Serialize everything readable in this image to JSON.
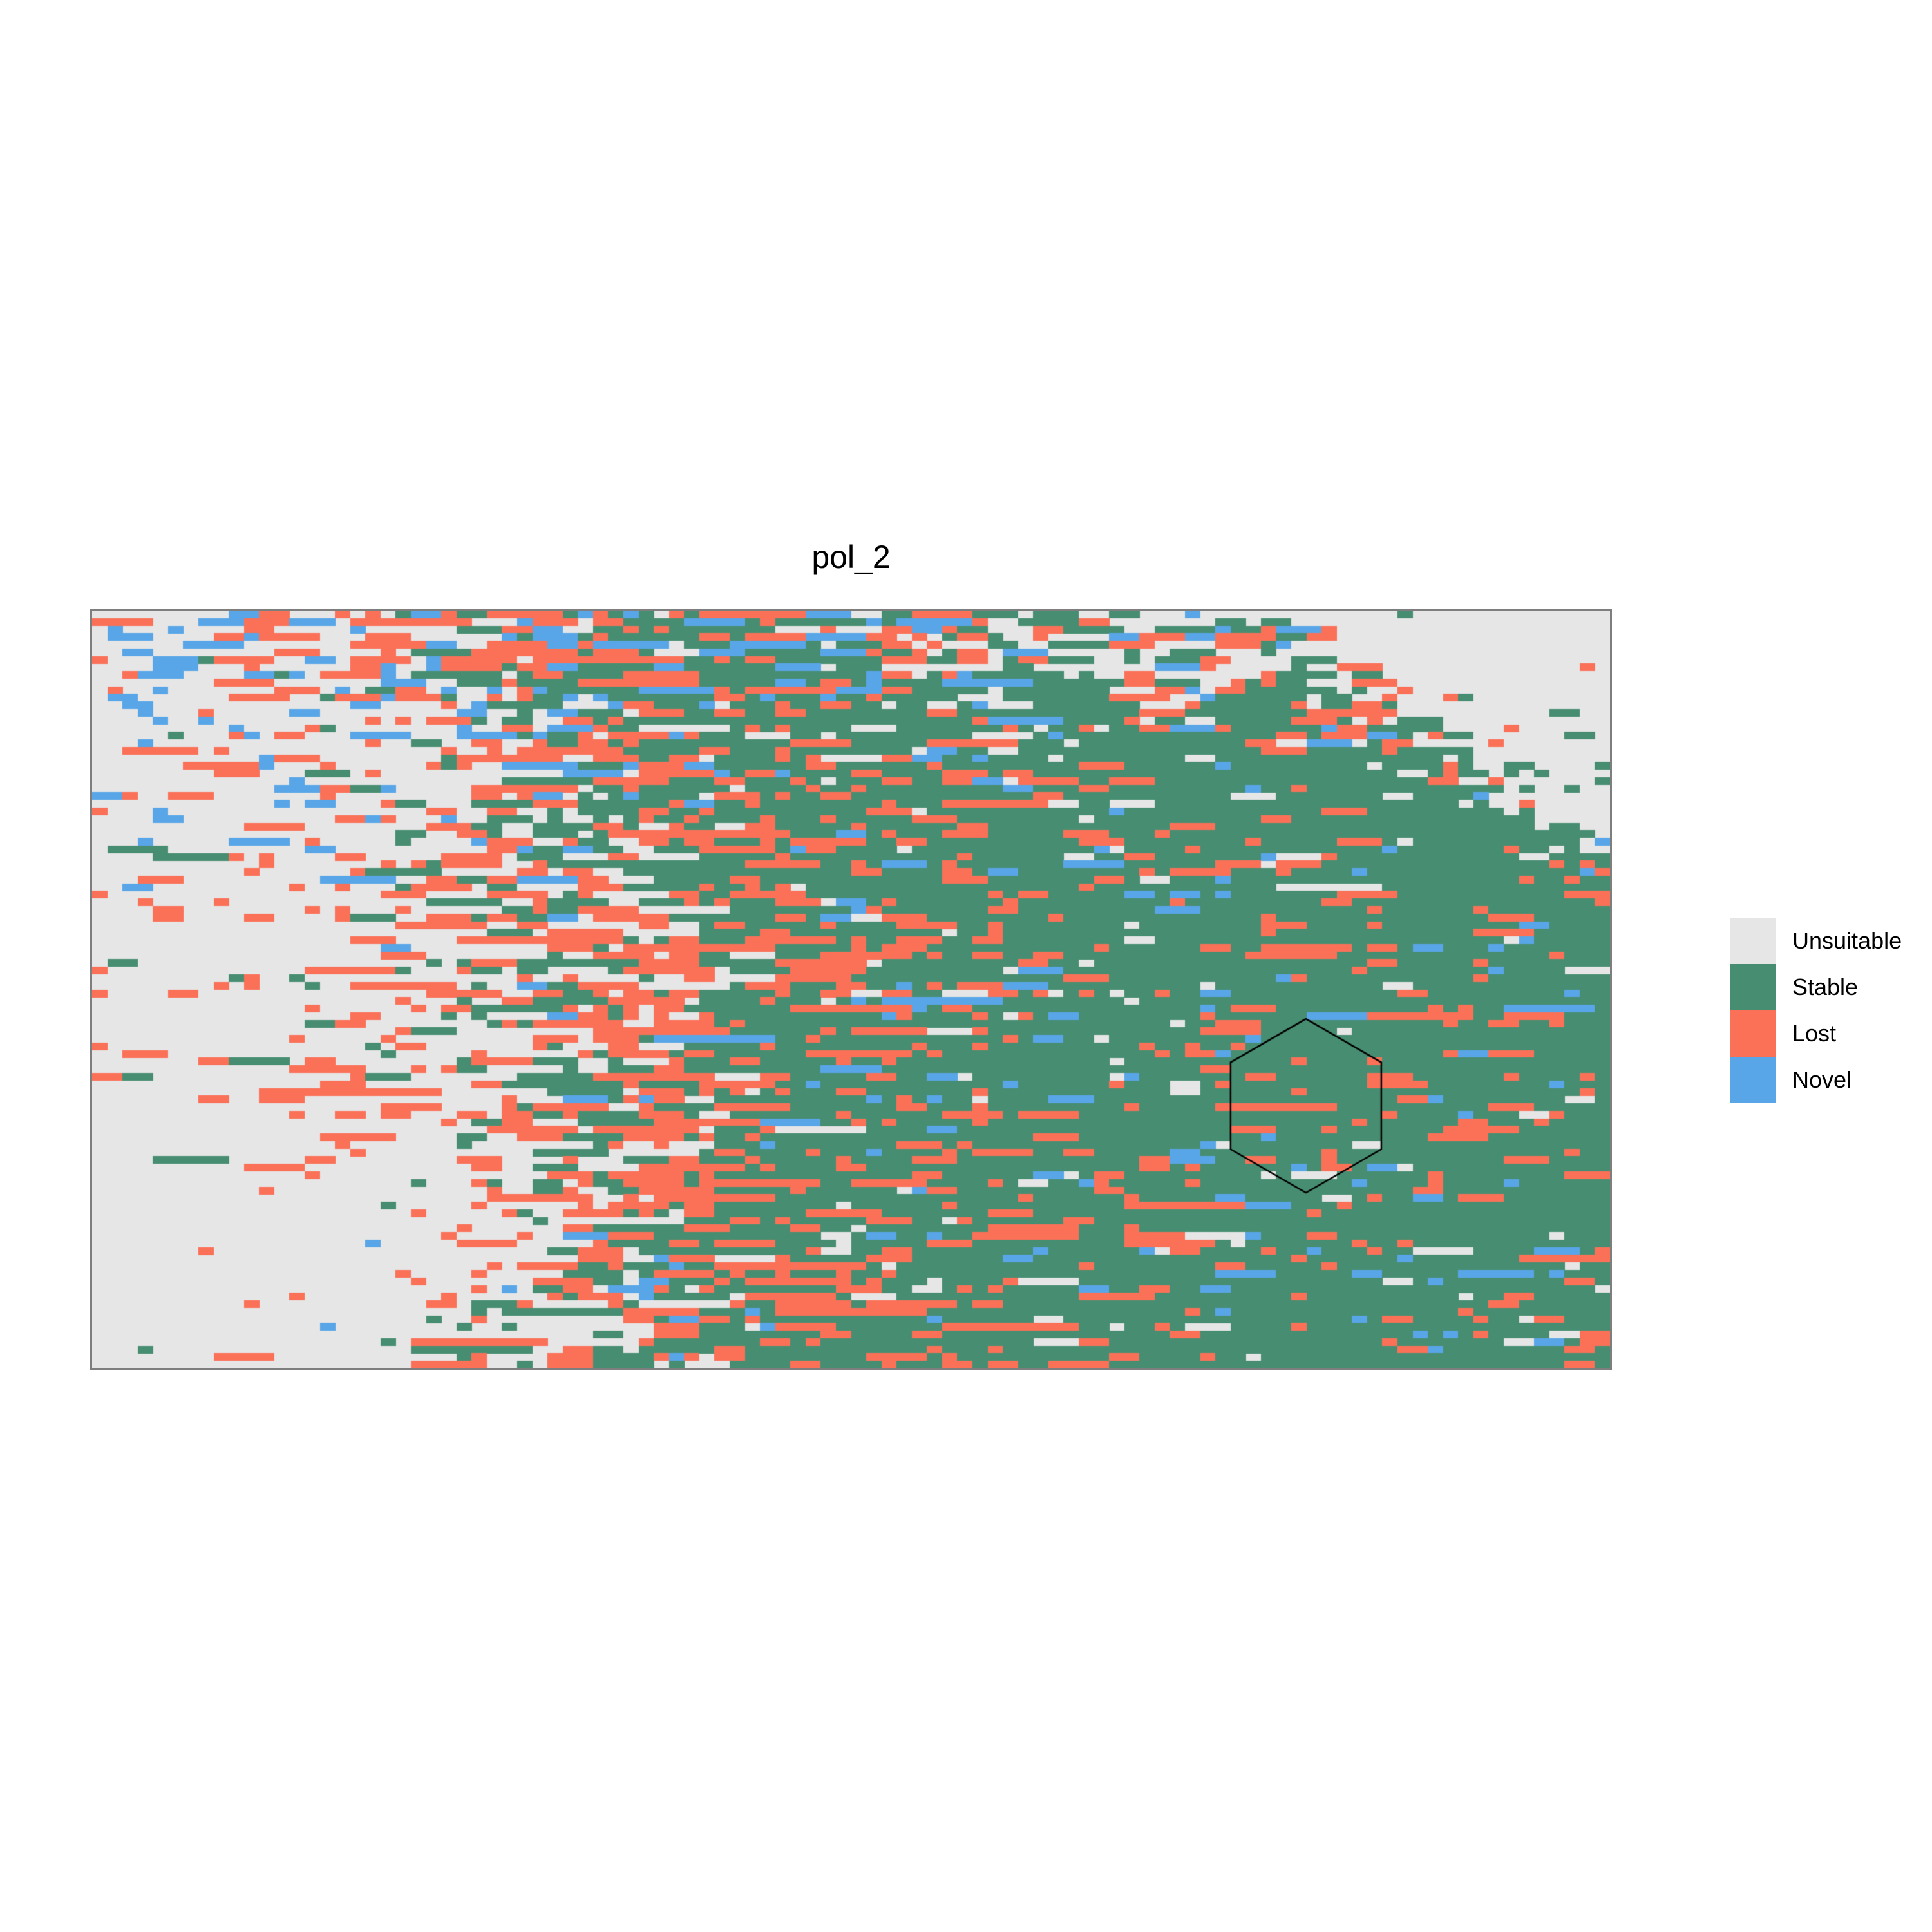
{
  "page": {
    "background": "#FFFFFF"
  },
  "chart_data": {
    "type": "heatmap",
    "title": "pol_2",
    "xlabel": "",
    "ylabel": "",
    "axes_visible": false,
    "grid_visible": false,
    "legend_position": "right",
    "panel": {
      "background": "#E6E6E6",
      "border_color": "#7E7E7E",
      "border_width": 3
    },
    "categories": [
      {
        "label": "Unsuitable",
        "color": "#E6E6E6"
      },
      {
        "label": "Stable",
        "color": "#478D72"
      },
      {
        "label": "Lost",
        "color": "#FB7158"
      },
      {
        "label": "Novel",
        "color": "#58A6E8"
      }
    ],
    "grid": {
      "cols": 100,
      "rows": 100,
      "seed": 11,
      "run_copy_prob": 0.4
    },
    "distribution_summary": {
      "top_right_corner": "solid Unsuitable (gray) wedge from about 80% width at top tapering to the right edge at ~30% height",
      "left_third": "mostly Unsuitable with sparse scattered cells; Novel (blue) concentrated in upper-left, Lost (salmon) in middle-left band",
      "bottom_left": "very sparse, almost entirely Unsuitable with occasional Lost cells",
      "top_band": "busy mix of Stable, Lost, Novel and Unsuitable across the upper rows left of the gray wedge",
      "center_and_right": "predominantly Stable (green, ~75-85%) with scattered Lost, Novel and Unsuitable specks",
      "lower_center_left": "dense Lost (salmon) clusters mixed with Stable and Unsuitable",
      "cell_runs": "cells frequently occur in horizontal runs of 2"
    },
    "annotation_hexagon": {
      "shape": "regular pointy-top hexagon outline",
      "center_u": 0.7997,
      "center_v": 0.6534,
      "radius_u": 0.04964,
      "radius_v": 0.1147,
      "stroke": "#000000",
      "stroke_width": 2.5,
      "fill": "none"
    }
  },
  "legend": {
    "items": [
      {
        "label": "Unsuitable"
      },
      {
        "label": "Stable"
      },
      {
        "label": "Lost"
      },
      {
        "label": "Novel"
      }
    ]
  }
}
